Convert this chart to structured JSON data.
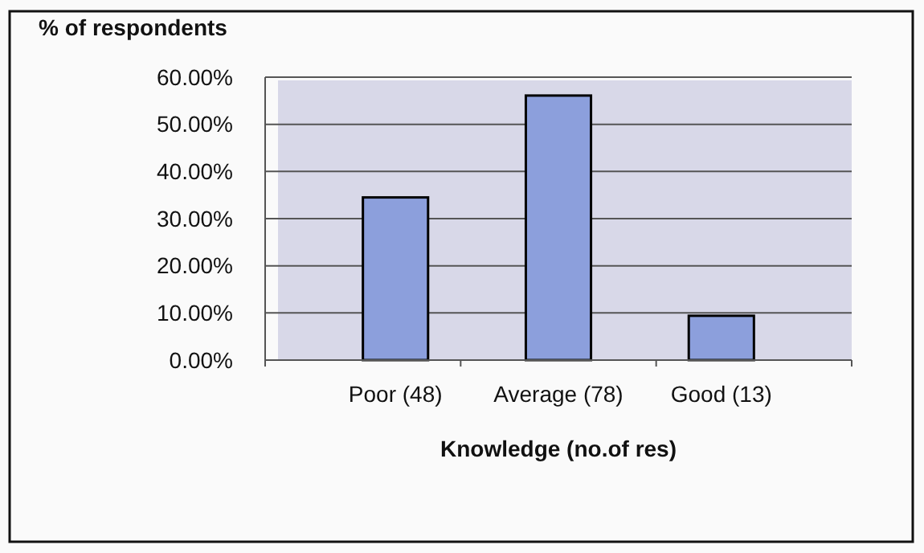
{
  "chart_data": {
    "type": "bar",
    "ylabel": "% of respondents",
    "xlabel": "Knowledge (no.of res)",
    "categories": [
      "Poor (48)",
      "Average (78)",
      "Good (13)"
    ],
    "values": [
      34.5,
      56.1,
      9.4
    ],
    "color": "#8c9fdc",
    "ylim": [
      0,
      60
    ],
    "yticks": [
      {
        "value": 0,
        "label": "0.00%"
      },
      {
        "value": 10,
        "label": "10.00%"
      },
      {
        "value": 20,
        "label": "20.00%"
      },
      {
        "value": 30,
        "label": "30.00%"
      },
      {
        "value": 40,
        "label": "40.00%"
      },
      {
        "value": 50,
        "label": "50.00%"
      },
      {
        "value": 60,
        "label": "60.00%"
      }
    ],
    "grid": "y"
  }
}
